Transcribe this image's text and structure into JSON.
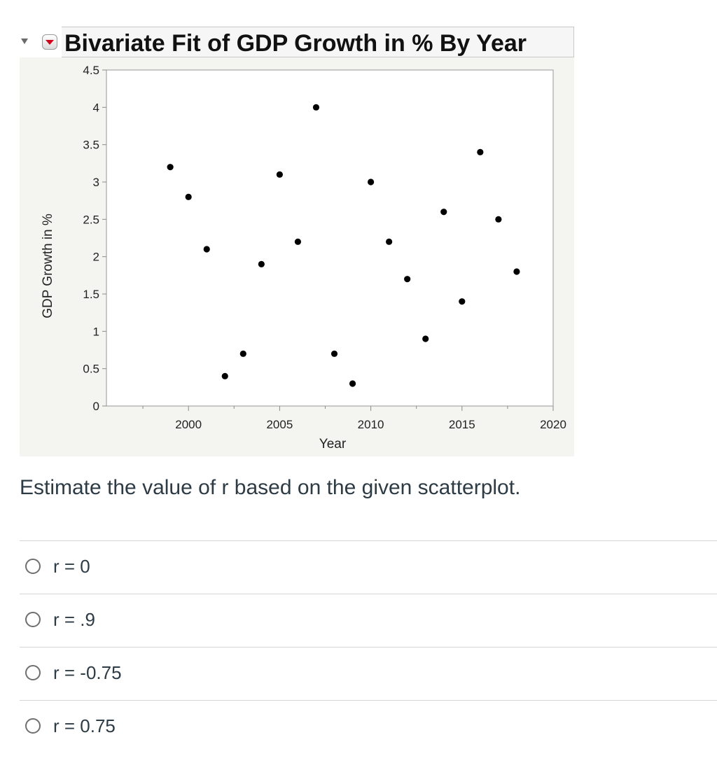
{
  "report": {
    "title": "Bivariate Fit of GDP Growth in % By Year"
  },
  "chart_data": {
    "type": "scatter",
    "title": "Bivariate Fit of GDP Growth in % By Year",
    "xlabel": "Year",
    "ylabel": "GDP Growth in %",
    "xlim": [
      1995.5,
      2020
    ],
    "ylim": [
      0,
      4.5
    ],
    "xticks": [
      2000,
      2005,
      2010,
      2015,
      2020
    ],
    "yticks": [
      0,
      0.5,
      1,
      1.5,
      2,
      2.5,
      3,
      3.5,
      4,
      4.5
    ],
    "grid": false,
    "point_color": "#000000",
    "points": [
      {
        "x": 1999,
        "y": 3.2
      },
      {
        "x": 2000,
        "y": 2.8
      },
      {
        "x": 2001,
        "y": 2.1
      },
      {
        "x": 2002,
        "y": 0.4
      },
      {
        "x": 2003,
        "y": 0.7
      },
      {
        "x": 2004,
        "y": 1.9
      },
      {
        "x": 2005,
        "y": 3.1
      },
      {
        "x": 2006,
        "y": 2.2
      },
      {
        "x": 2007,
        "y": 4.0
      },
      {
        "x": 2008,
        "y": 0.7
      },
      {
        "x": 2009,
        "y": 0.3
      },
      {
        "x": 2010,
        "y": 3.0
      },
      {
        "x": 2011,
        "y": 2.2
      },
      {
        "x": 2012,
        "y": 1.7
      },
      {
        "x": 2013,
        "y": 0.9
      },
      {
        "x": 2014,
        "y": 2.6
      },
      {
        "x": 2015,
        "y": 1.4
      },
      {
        "x": 2016,
        "y": 3.4
      },
      {
        "x": 2017,
        "y": 2.5
      },
      {
        "x": 2018,
        "y": 1.8
      }
    ]
  },
  "question": {
    "text": "Estimate the value of r based on the given scatterplot.",
    "options": [
      {
        "label": "r = 0"
      },
      {
        "label": "r = .9"
      },
      {
        "label": "r = -0.75"
      },
      {
        "label": "r = 0.75"
      }
    ]
  }
}
